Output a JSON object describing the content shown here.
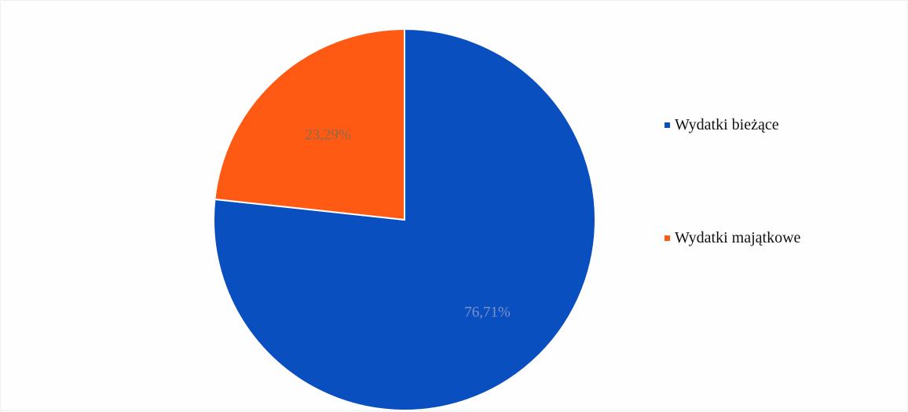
{
  "chart_data": {
    "type": "pie",
    "slices": [
      {
        "name": "Wydatki bieżące",
        "value": 76.71,
        "label": "76,71%",
        "color": "#0a4fc0"
      },
      {
        "name": "Wydatki majątkowe",
        "value": 23.29,
        "label": "23,29%",
        "color": "#ff5a14"
      }
    ],
    "start_angle_deg": 0,
    "direction": "clockwise",
    "legend_placement": "right"
  },
  "legend": {
    "items": [
      {
        "label": "Wydatki bieżące",
        "color": "#0a4fc0"
      },
      {
        "label": "Wydatki majątkowe",
        "color": "#ff5a14"
      }
    ]
  }
}
